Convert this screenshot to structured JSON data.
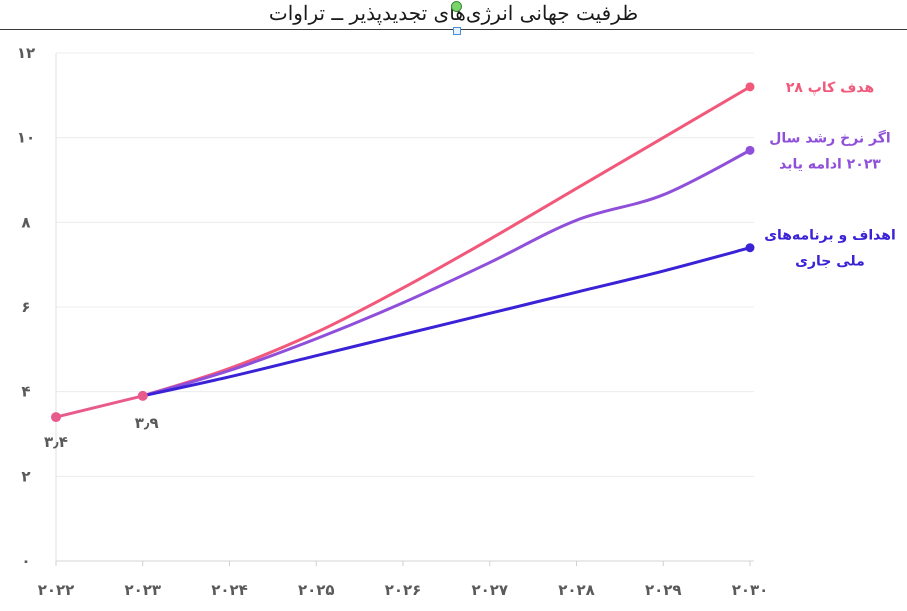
{
  "title": "ظرفیت جهانی انرژی‌های تجدیدپذیر ــ تراوات",
  "chart_data": {
    "type": "line",
    "x": [
      "۲۰۲۲",
      "۲۰۲۳",
      "۲۰۲۴",
      "۲۰۲۵",
      "۲۰۲۶",
      "۲۰۲۷",
      "۲۰۲۸",
      "۲۰۲۹",
      "۲۰۳۰"
    ],
    "ylim": [
      0,
      12
    ],
    "yticks": [
      "۰",
      "۲",
      "۴",
      "۶",
      "۸",
      "۱۰",
      "۱۲"
    ],
    "grid": true,
    "history": {
      "x_index": [
        0,
        1
      ],
      "values": [
        3.4,
        3.9
      ],
      "labels": [
        "۳٫۴",
        "۳٫۹"
      ],
      "color": "#e85a8c"
    },
    "series": [
      {
        "name": "هدف کاپ ۲۸",
        "label_lines": [
          "هدف کاپ ۲۸"
        ],
        "color": "#f2587a",
        "values": [
          3.4,
          3.9,
          4.55,
          5.4,
          6.45,
          7.6,
          8.8,
          10.0,
          11.2
        ]
      },
      {
        "name": "اگر نرخ رشد سال ۲۰۲۳ ادامه یابد",
        "label_lines": [
          "اگر نرخ رشد سال",
          "۲۰۲۳ ادامه یابد"
        ],
        "color": "#8f4fdb",
        "values": [
          3.4,
          3.9,
          4.5,
          5.25,
          6.1,
          7.05,
          8.05,
          8.65,
          9.7
        ]
      },
      {
        "name": "اهداف و برنامه‌های ملی جاری",
        "label_lines": [
          "اهداف و برنامه‌های",
          "ملی جاری"
        ],
        "color": "#3a22d6",
        "values": [
          3.4,
          3.9,
          4.35,
          4.85,
          5.35,
          5.85,
          6.35,
          6.85,
          7.4
        ]
      }
    ]
  }
}
